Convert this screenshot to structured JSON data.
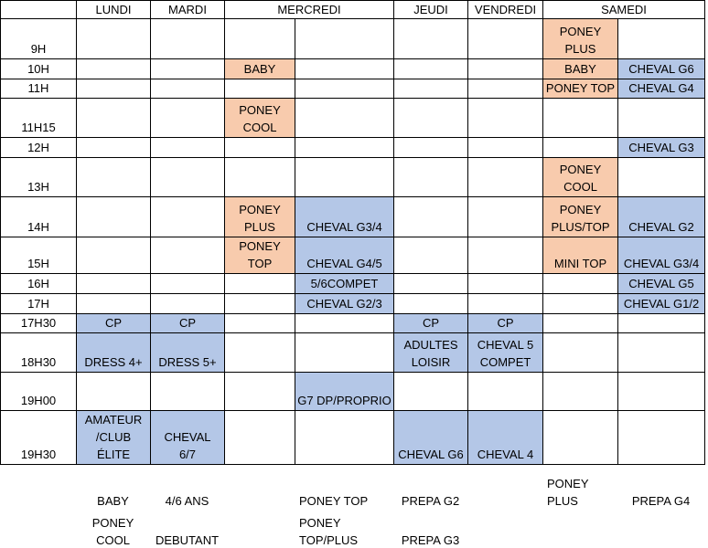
{
  "colors": {
    "orange": "#f8cbad",
    "blue": "#b4c7e7"
  },
  "table": {
    "header": [
      "LUNDI",
      "MARDI",
      "MERCREDI",
      "JEUDI",
      "VENDREDI",
      "SAMEDI"
    ],
    "rows": [
      {
        "time": "9H",
        "cells": [
          null,
          null,
          null,
          null,
          null,
          null,
          {
            "text": "PONEY\nPLUS",
            "fill": "orange"
          },
          null
        ]
      },
      {
        "time": "10H",
        "cells": [
          null,
          null,
          {
            "text": "BABY",
            "fill": "orange"
          },
          null,
          null,
          null,
          {
            "text": "BABY",
            "fill": "orange"
          },
          {
            "text": "CHEVAL G6",
            "fill": "blue"
          }
        ]
      },
      {
        "time": "11H",
        "cells": [
          null,
          null,
          null,
          null,
          null,
          null,
          {
            "text": "PONEY TOP",
            "fill": "orange"
          },
          {
            "text": "CHEVAL G4",
            "fill": "blue"
          }
        ]
      },
      {
        "time": "11H15",
        "cells": [
          null,
          null,
          {
            "text": "PONEY\nCOOL",
            "fill": "orange"
          },
          null,
          null,
          null,
          null,
          null
        ]
      },
      {
        "time": "12H",
        "cells": [
          null,
          null,
          null,
          null,
          null,
          null,
          null,
          {
            "text": "CHEVAL G3",
            "fill": "blue"
          }
        ]
      },
      {
        "time": "13H",
        "cells": [
          null,
          null,
          null,
          null,
          null,
          null,
          {
            "text": "PONEY\nCOOL",
            "fill": "orange"
          },
          null
        ]
      },
      {
        "time": "14H",
        "cells": [
          null,
          null,
          {
            "text": "PONEY\nPLUS",
            "fill": "orange"
          },
          {
            "text": "CHEVAL G3/4",
            "fill": "blue"
          },
          null,
          null,
          {
            "text": "PONEY\nPLUS/TOP",
            "fill": "orange"
          },
          {
            "text": "CHEVAL G2",
            "fill": "blue"
          }
        ]
      },
      {
        "time": "15H",
        "cells": [
          null,
          null,
          {
            "text": "PONEY\nTOP",
            "fill": "orange"
          },
          {
            "text": "CHEVAL G4/5",
            "fill": "blue"
          },
          null,
          null,
          {
            "text": "MINI TOP",
            "fill": "orange"
          },
          {
            "text": "CHEVAL G3/4",
            "fill": "blue"
          }
        ]
      },
      {
        "time": "16H",
        "cells": [
          null,
          null,
          null,
          {
            "text": "5/6COMPET",
            "fill": "blue"
          },
          null,
          null,
          null,
          {
            "text": "CHEVAL G5",
            "fill": "blue"
          }
        ]
      },
      {
        "time": "17H",
        "cells": [
          null,
          null,
          null,
          {
            "text": "CHEVAL G2/3",
            "fill": "blue"
          },
          null,
          null,
          null,
          {
            "text": "CHEVAL G1/2",
            "fill": "blue"
          }
        ]
      },
      {
        "time": "17H30",
        "cells": [
          {
            "text": "CP",
            "fill": "blue"
          },
          {
            "text": "CP",
            "fill": "blue"
          },
          null,
          null,
          {
            "text": "CP",
            "fill": "blue"
          },
          {
            "text": "CP",
            "fill": "blue"
          },
          null,
          null
        ]
      },
      {
        "time": "18H30",
        "cells": [
          {
            "text": "DRESS 4+",
            "fill": "blue"
          },
          {
            "text": "DRESS 5+",
            "fill": "blue"
          },
          null,
          null,
          {
            "text": "ADULTES\nLOISIR",
            "fill": "blue"
          },
          {
            "text": "CHEVAL 5\nCOMPET",
            "fill": "blue"
          },
          null,
          null
        ]
      },
      {
        "time": "19H00",
        "cells": [
          null,
          null,
          null,
          {
            "text": "G7 DP/PROPRIO",
            "fill": "blue"
          },
          null,
          null,
          null,
          null
        ]
      },
      {
        "time": "19H30",
        "cells": [
          {
            "text": "AMATEUR\n/CLUB\nÉLITE",
            "fill": "blue"
          },
          {
            "text": "CHEVAL\n6/7",
            "fill": "blue"
          },
          null,
          null,
          {
            "text": "CHEVAL G6",
            "fill": "blue"
          },
          {
            "text": "CHEVAL 4",
            "fill": "blue"
          },
          null,
          null
        ]
      }
    ]
  },
  "legend": {
    "rows": [
      [
        "BABY",
        "4/6 ANS",
        null,
        "PONEY TOP",
        "PREPA G2",
        null,
        "PONEY\nPLUS",
        "PREPA G4"
      ],
      [
        "PONEY\nCOOL",
        "DEBUTANT",
        null,
        "PONEY\nTOP/PLUS",
        "PREPA G3",
        null,
        null,
        null
      ]
    ]
  }
}
